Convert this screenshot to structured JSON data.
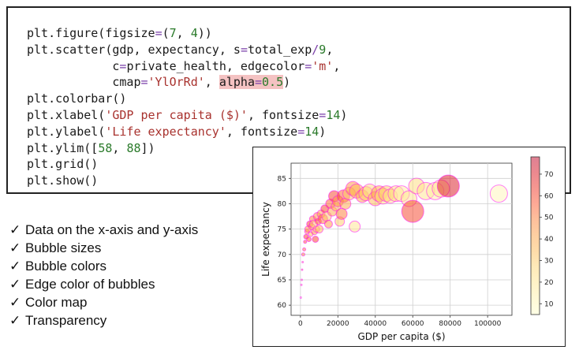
{
  "code_lines": [
    [
      {
        "t": "plt.figure(figsize",
        "c": "kw"
      },
      {
        "t": "=",
        "c": "op"
      },
      {
        "t": "(",
        "c": "kw"
      },
      {
        "t": "7",
        "c": "num"
      },
      {
        "t": ", ",
        "c": "kw"
      },
      {
        "t": "4",
        "c": "num"
      },
      {
        "t": "))",
        "c": "kw"
      }
    ],
    [
      {
        "t": "plt.scatter(gdp, expectancy, s",
        "c": "kw"
      },
      {
        "t": "=",
        "c": "op"
      },
      {
        "t": "total_exp",
        "c": "kw"
      },
      {
        "t": "/",
        "c": "op"
      },
      {
        "t": "9",
        "c": "num"
      },
      {
        "t": ",",
        "c": "kw"
      }
    ],
    [
      {
        "t": "            c",
        "c": "kw"
      },
      {
        "t": "=",
        "c": "op"
      },
      {
        "t": "private_health, edgecolor",
        "c": "kw"
      },
      {
        "t": "=",
        "c": "op"
      },
      {
        "t": "'m'",
        "c": "str"
      },
      {
        "t": ",",
        "c": "kw"
      }
    ],
    [
      {
        "t": "            cmap",
        "c": "kw"
      },
      {
        "t": "=",
        "c": "op"
      },
      {
        "t": "'YlOrRd'",
        "c": "str"
      },
      {
        "t": ", ",
        "c": "kw"
      },
      {
        "t": "alpha",
        "c": "kw hl"
      },
      {
        "t": "=",
        "c": "op hl"
      },
      {
        "t": "0.5",
        "c": "num hl"
      },
      {
        "t": ")",
        "c": "kw"
      }
    ],
    [
      {
        "t": "plt.colorbar()",
        "c": "kw"
      }
    ],
    [
      {
        "t": "plt.xlabel(",
        "c": "kw"
      },
      {
        "t": "'GDP per capita ($)'",
        "c": "str"
      },
      {
        "t": ", fontsize",
        "c": "kw"
      },
      {
        "t": "=",
        "c": "op"
      },
      {
        "t": "14",
        "c": "num"
      },
      {
        "t": ")",
        "c": "kw"
      }
    ],
    [
      {
        "t": "plt.ylabel(",
        "c": "kw"
      },
      {
        "t": "'Life expectancy'",
        "c": "str"
      },
      {
        "t": ", fontsize",
        "c": "kw"
      },
      {
        "t": "=",
        "c": "op"
      },
      {
        "t": "14",
        "c": "num"
      },
      {
        "t": ")",
        "c": "kw"
      }
    ],
    [
      {
        "t": "plt.ylim([",
        "c": "kw"
      },
      {
        "t": "58",
        "c": "num"
      },
      {
        "t": ", ",
        "c": "kw"
      },
      {
        "t": "88",
        "c": "num"
      },
      {
        "t": "])",
        "c": "kw"
      }
    ],
    [
      {
        "t": "plt.grid()",
        "c": "kw"
      }
    ],
    [
      {
        "t": "plt.show()",
        "c": "kw"
      }
    ]
  ],
  "checklist": [
    "Data on the x-axis and y-axis",
    "Bubble sizes",
    "Bubble colors",
    "Edge color of bubbles",
    "Color map",
    "Transparency"
  ],
  "check_glyph": "✓",
  "chart_data": {
    "type": "scatter",
    "xlabel": "GDP per capita ($)",
    "ylabel": "Life expectancy",
    "xlim": [
      -5000,
      113000
    ],
    "ylim": [
      58,
      88
    ],
    "xticks": [
      0,
      20000,
      40000,
      60000,
      80000,
      100000
    ],
    "yticks": [
      60,
      65,
      70,
      75,
      80,
      85
    ],
    "grid": true,
    "colormap": "YlOrRd",
    "alpha": 0.5,
    "edgecolor": "#ff00ff",
    "colorbar": {
      "min": 5,
      "max": 78,
      "ticks": [
        10,
        20,
        30,
        40,
        50,
        60,
        70
      ]
    },
    "points": [
      {
        "x": 200,
        "y": 61.5,
        "s": 1,
        "c": 10
      },
      {
        "x": 500,
        "y": 64,
        "s": 1,
        "c": 20
      },
      {
        "x": 700,
        "y": 65,
        "s": 1,
        "c": 25
      },
      {
        "x": 900,
        "y": 67,
        "s": 1,
        "c": 40
      },
      {
        "x": 1200,
        "y": 68.5,
        "s": 1,
        "c": 30
      },
      {
        "x": 1500,
        "y": 70,
        "s": 2,
        "c": 45
      },
      {
        "x": 2000,
        "y": 71,
        "s": 2,
        "c": 50
      },
      {
        "x": 2500,
        "y": 72.5,
        "s": 2,
        "c": 55
      },
      {
        "x": 3000,
        "y": 73.5,
        "s": 3,
        "c": 60
      },
      {
        "x": 3500,
        "y": 74.5,
        "s": 3,
        "c": 40
      },
      {
        "x": 4000,
        "y": 75,
        "s": 4,
        "c": 45
      },
      {
        "x": 4500,
        "y": 73,
        "s": 3,
        "c": 55
      },
      {
        "x": 5000,
        "y": 76,
        "s": 4,
        "c": 60
      },
      {
        "x": 5500,
        "y": 74,
        "s": 3,
        "c": 35
      },
      {
        "x": 6000,
        "y": 75.5,
        "s": 4,
        "c": 40
      },
      {
        "x": 6500,
        "y": 77,
        "s": 4,
        "c": 50
      },
      {
        "x": 7000,
        "y": 76,
        "s": 5,
        "c": 30
      },
      {
        "x": 7500,
        "y": 74.5,
        "s": 4,
        "c": 45
      },
      {
        "x": 8000,
        "y": 73,
        "s": 4,
        "c": 60
      },
      {
        "x": 8500,
        "y": 75,
        "s": 4,
        "c": 25
      },
      {
        "x": 9000,
        "y": 77.5,
        "s": 5,
        "c": 45
      },
      {
        "x": 9500,
        "y": 76.5,
        "s": 4,
        "c": 55
      },
      {
        "x": 10000,
        "y": 75,
        "s": 5,
        "c": 35
      },
      {
        "x": 11000,
        "y": 78,
        "s": 5,
        "c": 40
      },
      {
        "x": 12000,
        "y": 77,
        "s": 6,
        "c": 50
      },
      {
        "x": 13000,
        "y": 79,
        "s": 5,
        "c": 60
      },
      {
        "x": 14000,
        "y": 77.5,
        "s": 6,
        "c": 30
      },
      {
        "x": 15000,
        "y": 76,
        "s": 5,
        "c": 45
      },
      {
        "x": 16000,
        "y": 80,
        "s": 6,
        "c": 55
      },
      {
        "x": 17000,
        "y": 78.5,
        "s": 6,
        "c": 40
      },
      {
        "x": 18000,
        "y": 81.5,
        "s": 7,
        "c": 60
      },
      {
        "x": 19000,
        "y": 79.5,
        "s": 6,
        "c": 35
      },
      {
        "x": 20000,
        "y": 80.5,
        "s": 7,
        "c": 45
      },
      {
        "x": 21000,
        "y": 76.5,
        "s": 6,
        "c": 30
      },
      {
        "x": 22000,
        "y": 78,
        "s": 7,
        "c": 50
      },
      {
        "x": 23000,
        "y": 81.5,
        "s": 8,
        "c": 55
      },
      {
        "x": 24000,
        "y": 80,
        "s": 7,
        "c": 40
      },
      {
        "x": 26000,
        "y": 82,
        "s": 8,
        "c": 30
      },
      {
        "x": 28000,
        "y": 83,
        "s": 9,
        "c": 45
      },
      {
        "x": 29000,
        "y": 75.5,
        "s": 7,
        "c": 20
      },
      {
        "x": 30000,
        "y": 82.5,
        "s": 9,
        "c": 35
      },
      {
        "x": 33000,
        "y": 81.5,
        "s": 8,
        "c": 40
      },
      {
        "x": 35000,
        "y": 82,
        "s": 9,
        "c": 30
      },
      {
        "x": 37000,
        "y": 82.5,
        "s": 9,
        "c": 25
      },
      {
        "x": 40000,
        "y": 81,
        "s": 9,
        "c": 35
      },
      {
        "x": 42000,
        "y": 82,
        "s": 10,
        "c": 40
      },
      {
        "x": 44000,
        "y": 81.5,
        "s": 10,
        "c": 25
      },
      {
        "x": 46000,
        "y": 82,
        "s": 10,
        "c": 30
      },
      {
        "x": 48000,
        "y": 81.5,
        "s": 9,
        "c": 20
      },
      {
        "x": 51000,
        "y": 82,
        "s": 10,
        "c": 25
      },
      {
        "x": 54000,
        "y": 82,
        "s": 10,
        "c": 15
      },
      {
        "x": 58000,
        "y": 81,
        "s": 10,
        "c": 20
      },
      {
        "x": 60000,
        "y": 78.5,
        "s": 14,
        "c": 60
      },
      {
        "x": 62000,
        "y": 83.5,
        "s": 10,
        "c": 25
      },
      {
        "x": 67000,
        "y": 82.5,
        "s": 11,
        "c": 20
      },
      {
        "x": 72000,
        "y": 82.5,
        "s": 11,
        "c": 15
      },
      {
        "x": 75000,
        "y": 83,
        "s": 11,
        "c": 20
      },
      {
        "x": 79000,
        "y": 83.5,
        "s": 14,
        "c": 70
      },
      {
        "x": 106000,
        "y": 82,
        "s": 11,
        "c": 10
      }
    ]
  }
}
